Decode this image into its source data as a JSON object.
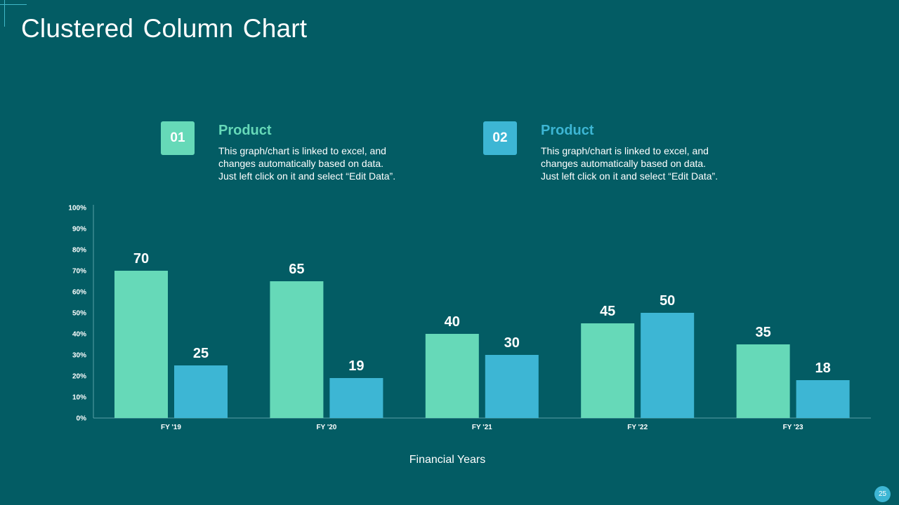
{
  "slide": {
    "title": "Clustered Column Chart",
    "page_number": "25"
  },
  "legend": [
    {
      "badge": "01",
      "title": "Product",
      "color": "#66d9b8",
      "desc_lines": [
        "This graph/chart is linked to excel, and",
        "changes automatically based on data.",
        "Just left click on it and select “Edit Data”."
      ]
    },
    {
      "badge": "02",
      "title": "Product",
      "color": "#3db6d4",
      "desc_lines": [
        "This graph/chart is linked to excel, and",
        "changes automatically based on data.",
        "Just left click on it and select “Edit Data”."
      ]
    }
  ],
  "chart_data": {
    "type": "bar",
    "title": "",
    "xlabel": "Financial Years",
    "ylabel": "",
    "categories": [
      "FY '19",
      "FY '20",
      "FY '21",
      "FY '22",
      "FY '23"
    ],
    "series": [
      {
        "name": "Product 01",
        "color": "#66d9b8",
        "values": [
          70,
          65,
          40,
          45,
          35
        ]
      },
      {
        "name": "Product 02",
        "color": "#3db6d4",
        "values": [
          25,
          19,
          30,
          50,
          18
        ]
      }
    ],
    "ylim": [
      0,
      100
    ],
    "yticks": [
      "0%",
      "10%",
      "20%",
      "30%",
      "40%",
      "50%",
      "60%",
      "70%",
      "80%",
      "90%",
      "100%"
    ],
    "grid": false
  }
}
